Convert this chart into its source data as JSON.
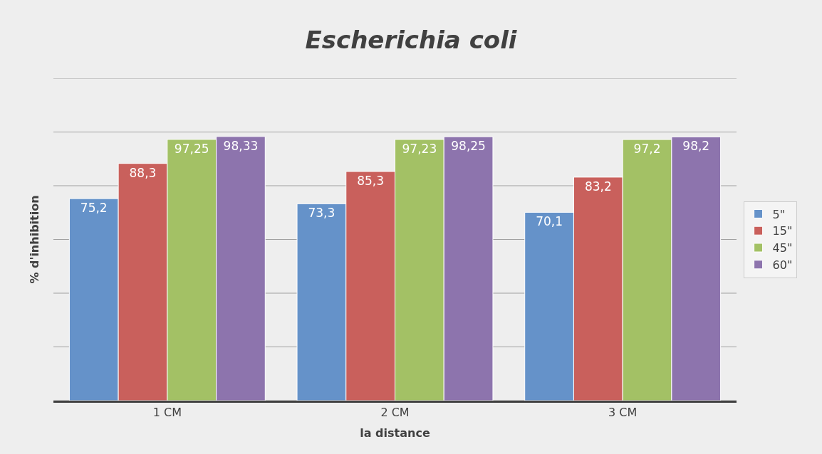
{
  "chart_data": {
    "type": "bar",
    "title": "Escherichia coli",
    "xlabel": "la distance",
    "ylabel": "% d'inhibition",
    "categories": [
      "1 CM",
      "2 CM",
      "3 CM"
    ],
    "series": [
      {
        "name": "5\"",
        "color": "#6592c9",
        "values": [
          75.2,
          73.3,
          70.1
        ],
        "value_labels": [
          "75,2",
          "73,3",
          "70,1"
        ]
      },
      {
        "name": "15\"",
        "color": "#c9605c",
        "values": [
          88.3,
          85.3,
          83.2
        ],
        "value_labels": [
          "88,3",
          "85,3",
          "83,2"
        ]
      },
      {
        "name": "45\"",
        "color": "#a3c165",
        "values": [
          97.25,
          97.23,
          97.2
        ],
        "value_labels": [
          "97,25",
          "97,23",
          "97,2"
        ]
      },
      {
        "name": "60\"",
        "color": "#8d74ad",
        "values": [
          98.33,
          98.25,
          98.2
        ],
        "value_labels": [
          "98,33",
          "98,25",
          "98,2"
        ]
      }
    ],
    "ylim": [
      0,
      120
    ],
    "yticks": [
      {
        "value": 0,
        "label": null
      },
      {
        "value": 20,
        "label": null
      },
      {
        "value": 40,
        "label": null
      },
      {
        "value": 60,
        "label": null
      },
      {
        "value": 80,
        "label": null
      },
      {
        "value": 100,
        "label": null
      },
      {
        "value": 120,
        "label": null
      }
    ],
    "tick_labels": "x",
    "grid": "y",
    "legend": "right"
  }
}
